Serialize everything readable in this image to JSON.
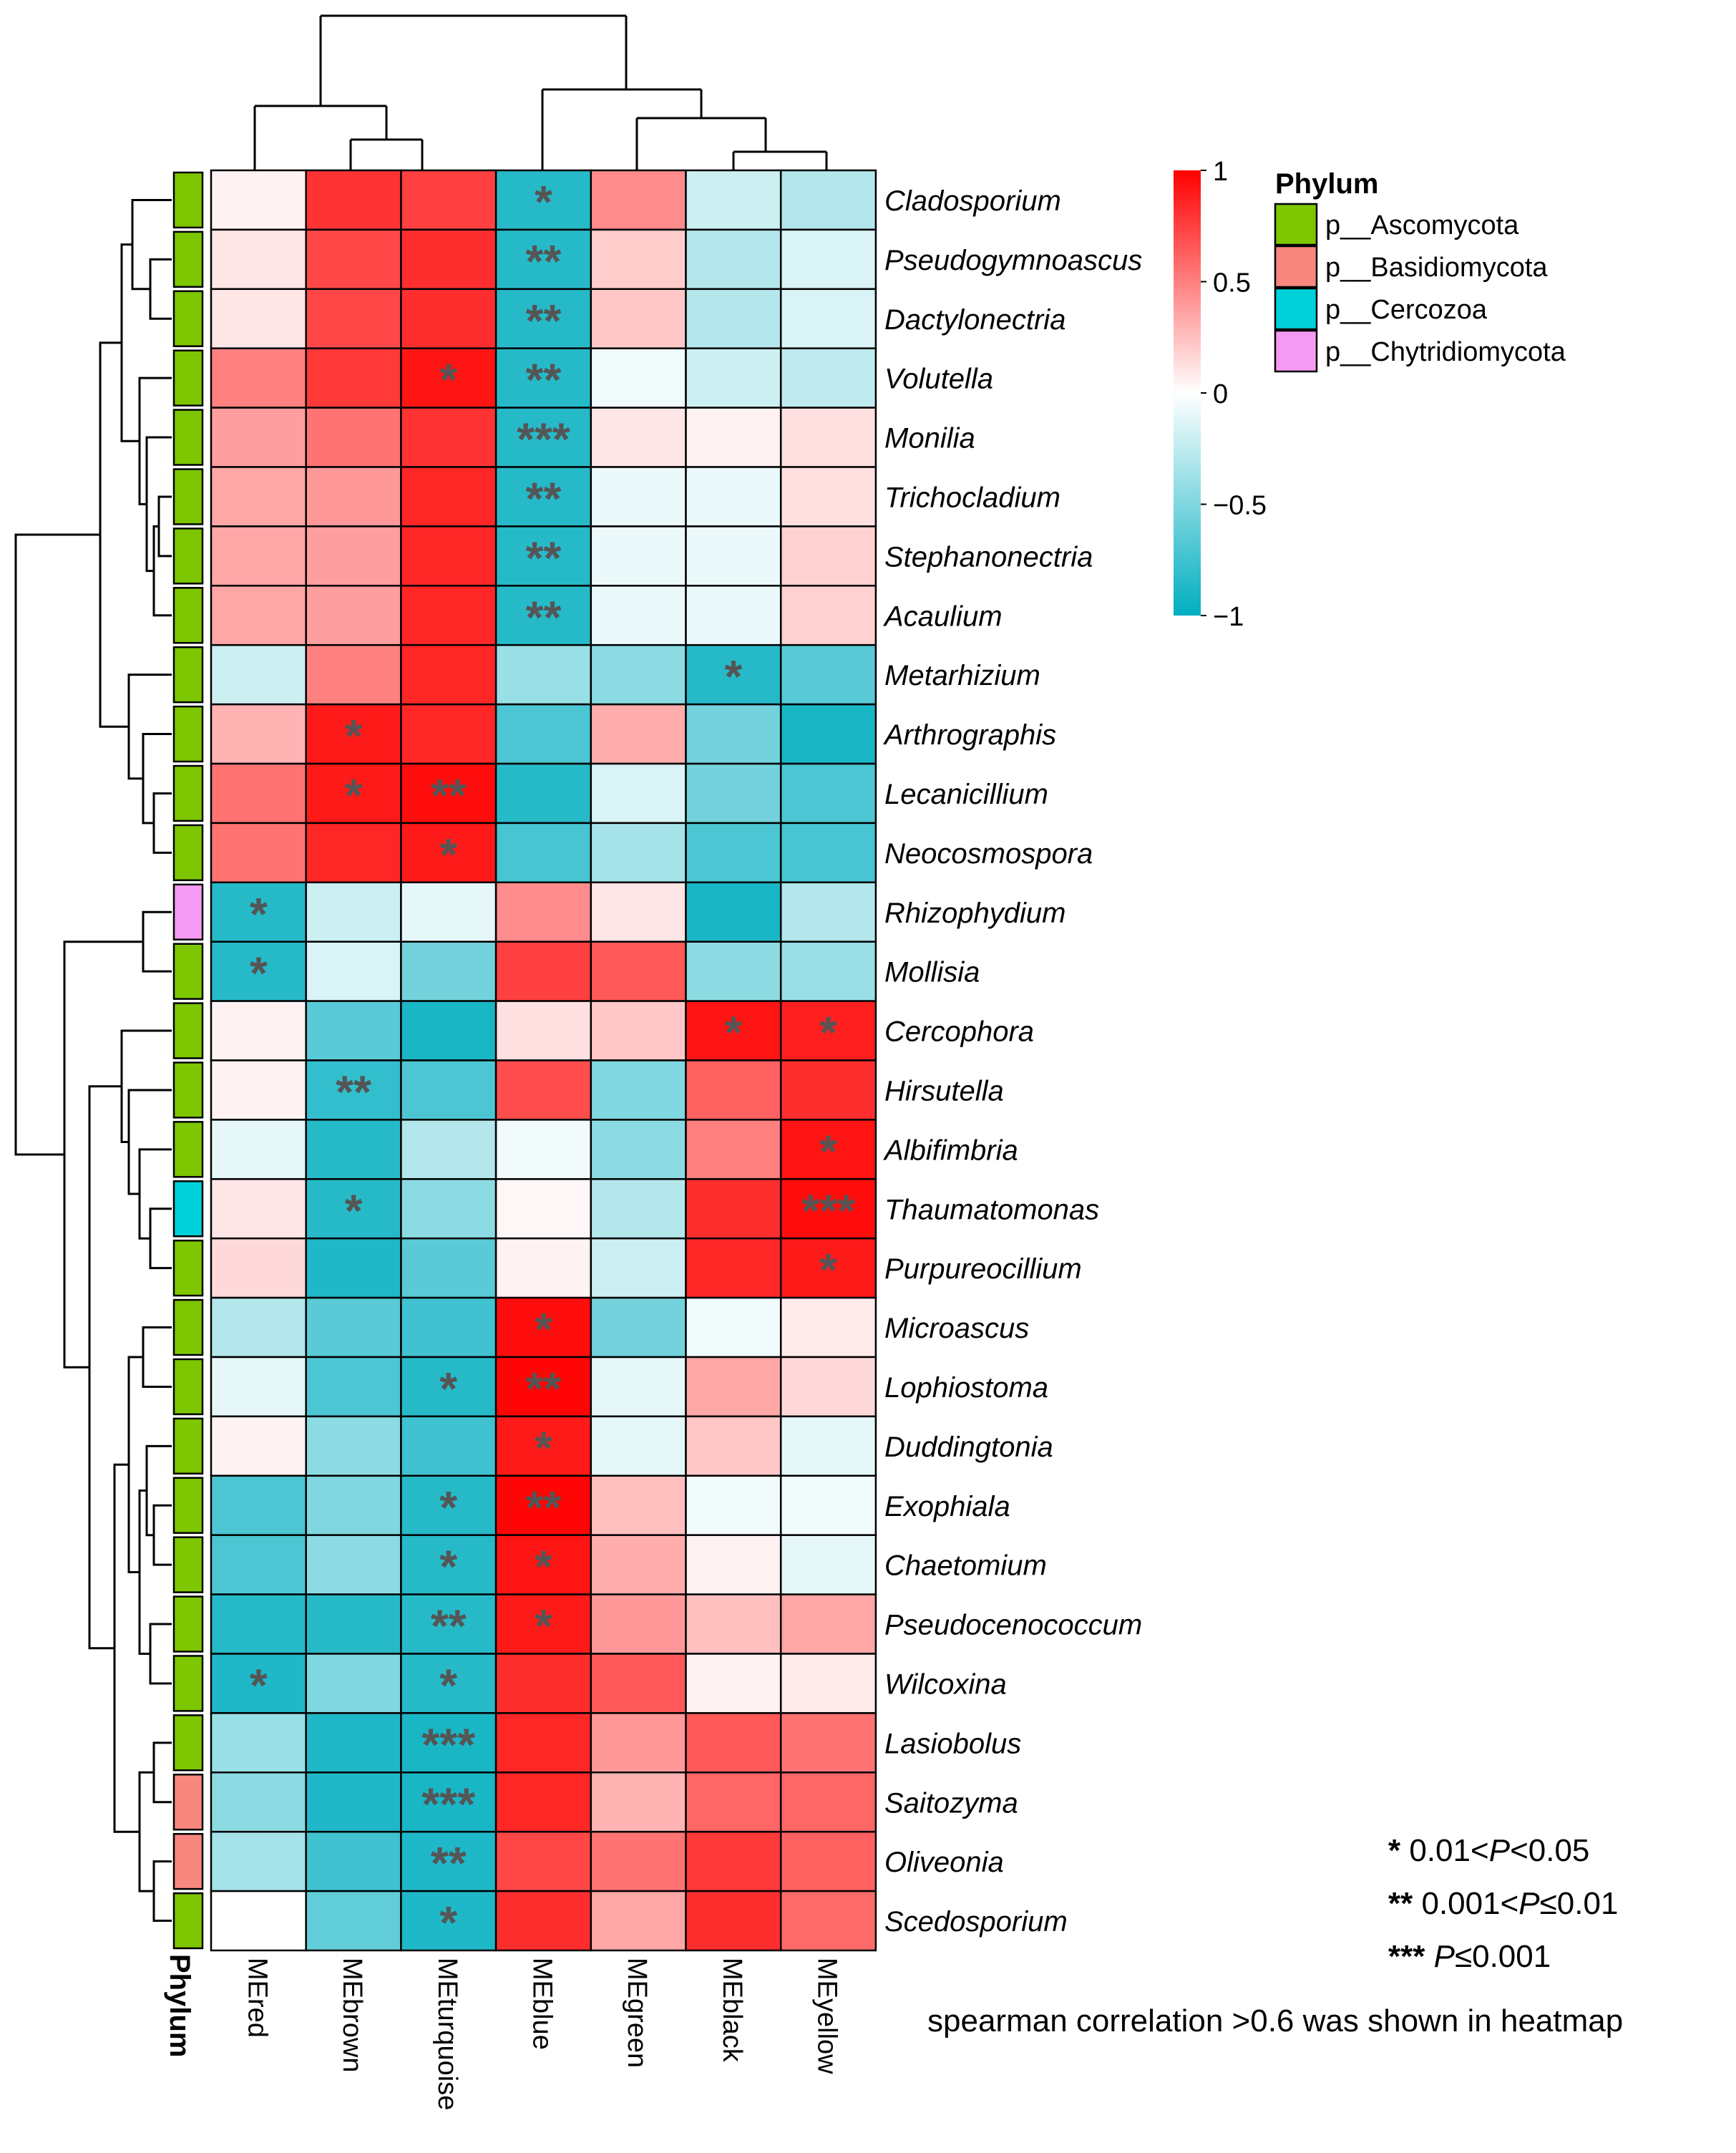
{
  "chart_data": {
    "type": "heatmap",
    "title": "",
    "note": "spearman correlation >0.6 was shown in heatmap",
    "columns": [
      "MEred",
      "MEbrown",
      "MEturquoise",
      "MEblue",
      "MEgreen",
      "MEblack",
      "MEyellow"
    ],
    "column_axis_label": "Phylum",
    "rows": [
      {
        "genus": "Cladosporium",
        "phylum": "p__Ascomycota",
        "values": [
          0.05,
          0.8,
          0.75,
          -0.85,
          0.45,
          -0.2,
          -0.3
        ],
        "stars": [
          "",
          "",
          "",
          "*",
          "",
          "",
          ""
        ]
      },
      {
        "genus": "Pseudogymnoascus",
        "phylum": "p__Ascomycota",
        "values": [
          0.1,
          0.72,
          0.82,
          -0.85,
          0.2,
          -0.3,
          -0.15
        ],
        "stars": [
          "",
          "",
          "",
          "**",
          "",
          "",
          ""
        ]
      },
      {
        "genus": "Dactylonectria",
        "phylum": "p__Ascomycota",
        "values": [
          0.1,
          0.72,
          0.82,
          -0.85,
          0.22,
          -0.3,
          -0.15
        ],
        "stars": [
          "",
          "",
          "",
          "**",
          "",
          "",
          ""
        ]
      },
      {
        "genus": "Volutella",
        "phylum": "p__Ascomycota",
        "values": [
          0.5,
          0.78,
          0.92,
          -0.85,
          -0.05,
          -0.2,
          -0.25
        ],
        "stars": [
          "",
          "",
          "*",
          "**",
          "",
          "",
          ""
        ]
      },
      {
        "genus": "Monilia",
        "phylum": "p__Ascomycota",
        "values": [
          0.38,
          0.55,
          0.8,
          -0.85,
          0.1,
          0.05,
          0.12
        ],
        "stars": [
          "",
          "",
          "",
          "***",
          "",
          "",
          ""
        ]
      },
      {
        "genus": "Trichocladium",
        "phylum": "p__Ascomycota",
        "values": [
          0.35,
          0.4,
          0.85,
          -0.85,
          -0.08,
          -0.08,
          0.12
        ],
        "stars": [
          "",
          "",
          "",
          "**",
          "",
          "",
          ""
        ]
      },
      {
        "genus": "Stephanonectria",
        "phylum": "p__Ascomycota",
        "values": [
          0.35,
          0.38,
          0.85,
          -0.85,
          -0.08,
          -0.08,
          0.18
        ],
        "stars": [
          "",
          "",
          "",
          "**",
          "",
          "",
          ""
        ]
      },
      {
        "genus": "Acaulium",
        "phylum": "p__Ascomycota",
        "values": [
          0.35,
          0.38,
          0.85,
          -0.85,
          -0.08,
          -0.08,
          0.18
        ],
        "stars": [
          "",
          "",
          "",
          "**",
          "",
          "",
          ""
        ]
      },
      {
        "genus": "Metarhizium",
        "phylum": "p__Ascomycota",
        "values": [
          -0.2,
          0.5,
          0.85,
          -0.4,
          -0.45,
          -0.85,
          -0.65
        ],
        "stars": [
          "",
          "",
          "",
          "",
          "",
          "*",
          ""
        ]
      },
      {
        "genus": "Arthrographis",
        "phylum": "p__Ascomycota",
        "values": [
          0.3,
          0.9,
          0.85,
          -0.7,
          0.32,
          -0.55,
          -0.9
        ],
        "stars": [
          "",
          "*",
          "",
          "",
          "",
          "",
          ""
        ]
      },
      {
        "genus": "Lecanicillium",
        "phylum": "p__Ascomycota",
        "values": [
          0.55,
          0.9,
          0.95,
          -0.85,
          -0.15,
          -0.55,
          -0.7
        ],
        "stars": [
          "",
          "*",
          "**",
          "",
          "",
          "",
          ""
        ]
      },
      {
        "genus": "Neocosmospora",
        "phylum": "p__Ascomycota",
        "values": [
          0.55,
          0.85,
          0.9,
          -0.72,
          -0.35,
          -0.7,
          -0.72
        ],
        "stars": [
          "",
          "",
          "*",
          "",
          "",
          "",
          ""
        ]
      },
      {
        "genus": "Rhizophydium",
        "phylum": "p__Chytridiomycota",
        "values": [
          -0.85,
          -0.2,
          -0.1,
          0.45,
          0.1,
          -0.9,
          -0.3
        ],
        "stars": [
          "*",
          "",
          "",
          "",
          "",
          "",
          ""
        ]
      },
      {
        "genus": "Mollisia",
        "phylum": "p__Ascomycota",
        "values": [
          -0.85,
          -0.15,
          -0.55,
          0.75,
          0.65,
          -0.45,
          -0.4
        ],
        "stars": [
          "*",
          "",
          "",
          "",
          "",
          "",
          ""
        ]
      },
      {
        "genus": "Cercophora",
        "phylum": "p__Ascomycota",
        "values": [
          0.05,
          -0.65,
          -0.9,
          0.12,
          0.22,
          0.92,
          0.88
        ],
        "stars": [
          "",
          "",
          "",
          "",
          "",
          "*",
          "*"
        ]
      },
      {
        "genus": "Hirsutella",
        "phylum": "p__Ascomycota",
        "values": [
          0.05,
          -0.8,
          -0.7,
          0.7,
          -0.5,
          0.62,
          0.82
        ],
        "stars": [
          "",
          "**",
          "",
          "",
          "",
          "",
          ""
        ]
      },
      {
        "genus": "Albifimbria",
        "phylum": "p__Ascomycota",
        "values": [
          -0.1,
          -0.85,
          -0.3,
          -0.05,
          -0.45,
          0.5,
          0.92
        ],
        "stars": [
          "",
          "",
          "",
          "",
          "",
          "",
          "*"
        ]
      },
      {
        "genus": "Thaumatomonas",
        "phylum": "p__Cercozoa",
        "values": [
          0.1,
          -0.85,
          -0.45,
          0.03,
          -0.3,
          0.82,
          0.95
        ],
        "stars": [
          "",
          "*",
          "",
          "",
          "",
          "",
          "***"
        ]
      },
      {
        "genus": "Purpureocillium",
        "phylum": "p__Ascomycota",
        "values": [
          0.15,
          -0.88,
          -0.65,
          0.05,
          -0.2,
          0.85,
          0.9
        ],
        "stars": [
          "",
          "",
          "",
          "",
          "",
          "",
          "*"
        ]
      },
      {
        "genus": "Microascus",
        "phylum": "p__Ascomycota",
        "values": [
          -0.3,
          -0.65,
          -0.75,
          0.95,
          -0.55,
          -0.05,
          0.08
        ],
        "stars": [
          "",
          "",
          "",
          "*",
          "",
          "",
          ""
        ]
      },
      {
        "genus": "Lophiostoma",
        "phylum": "p__Ascomycota",
        "values": [
          -0.1,
          -0.7,
          -0.85,
          0.98,
          -0.1,
          0.35,
          0.15
        ],
        "stars": [
          "",
          "",
          "*",
          "**",
          "",
          "",
          ""
        ]
      },
      {
        "genus": "Duddingtonia",
        "phylum": "p__Ascomycota",
        "values": [
          0.05,
          -0.45,
          -0.75,
          0.9,
          -0.1,
          0.22,
          -0.1
        ],
        "stars": [
          "",
          "",
          "",
          "*",
          "",
          "",
          ""
        ]
      },
      {
        "genus": "Exophiala",
        "phylum": "p__Ascomycota",
        "values": [
          -0.7,
          -0.5,
          -0.85,
          0.98,
          0.25,
          -0.05,
          -0.05
        ],
        "stars": [
          "",
          "",
          "*",
          "**",
          "",
          "",
          ""
        ]
      },
      {
        "genus": "Chaetomium",
        "phylum": "p__Ascomycota",
        "values": [
          -0.7,
          -0.45,
          -0.85,
          0.92,
          0.32,
          0.05,
          -0.1
        ],
        "stars": [
          "",
          "",
          "*",
          "*",
          "",
          "",
          ""
        ]
      },
      {
        "genus": "Pseudocenococcum",
        "phylum": "p__Ascomycota",
        "values": [
          -0.85,
          -0.85,
          -0.85,
          0.9,
          0.4,
          0.25,
          0.35
        ],
        "stars": [
          "",
          "",
          "**",
          "*",
          "",
          "",
          ""
        ]
      },
      {
        "genus": "Wilcoxina",
        "phylum": "p__Ascomycota",
        "values": [
          -0.88,
          -0.5,
          -0.85,
          0.82,
          0.65,
          0.05,
          0.08
        ],
        "stars": [
          "*",
          "",
          "*",
          "",
          "",
          "",
          ""
        ]
      },
      {
        "genus": "Lasiobolus",
        "phylum": "p__Ascomycota",
        "values": [
          -0.4,
          -0.88,
          -0.9,
          0.85,
          0.4,
          0.65,
          0.55
        ],
        "stars": [
          "",
          "",
          "***",
          "",
          "",
          "",
          ""
        ]
      },
      {
        "genus": "Saitozyma",
        "phylum": "p__Basidiomycota",
        "values": [
          -0.45,
          -0.88,
          -0.9,
          0.85,
          0.3,
          0.6,
          0.6
        ],
        "stars": [
          "",
          "",
          "***",
          "",
          "",
          "",
          ""
        ]
      },
      {
        "genus": "Oliveonia",
        "phylum": "p__Basidiomycota",
        "values": [
          -0.35,
          -0.75,
          -0.88,
          0.72,
          0.55,
          0.78,
          0.62
        ],
        "stars": [
          "",
          "",
          "**",
          "",
          "",
          "",
          ""
        ]
      },
      {
        "genus": "Scedosporium",
        "phylum": "p__Ascomycota",
        "values": [
          0.0,
          -0.62,
          -0.88,
          0.82,
          0.35,
          0.82,
          0.58
        ],
        "stars": [
          "",
          "",
          "*",
          "",
          "",
          "",
          ""
        ]
      }
    ],
    "color_scale": {
      "min": -1,
      "max": 1,
      "low_color": "#00AEC0",
      "mid_color": "#FFFFFF",
      "high_color": "#FF0000",
      "ticks": [
        "1",
        "0.5",
        "0",
        "−0.5",
        "−1"
      ],
      "tick_values": [
        1,
        0.5,
        0,
        -0.5,
        -1
      ]
    },
    "phylum_legend": {
      "title": "Phylum",
      "entries": [
        {
          "label": "p__Ascomycota",
          "color": "#7DC600"
        },
        {
          "label": "p__Basidiomycota",
          "color": "#F8877F"
        },
        {
          "label": "p__Cercozoa",
          "color": "#00D0D8"
        },
        {
          "label": "p__Chytridiomycota",
          "color": "#F49AF3"
        }
      ]
    },
    "significance_legend": [
      {
        "stars": "*",
        "prefix": "0.01<",
        "italic": "P",
        "suffix": "<0.05"
      },
      {
        "stars": "**",
        "prefix": "0.001<",
        "italic": "P",
        "suffix": "≤0.01"
      },
      {
        "stars": "***",
        "prefix": "",
        "italic": "P",
        "suffix": "≤0.001"
      }
    ]
  }
}
